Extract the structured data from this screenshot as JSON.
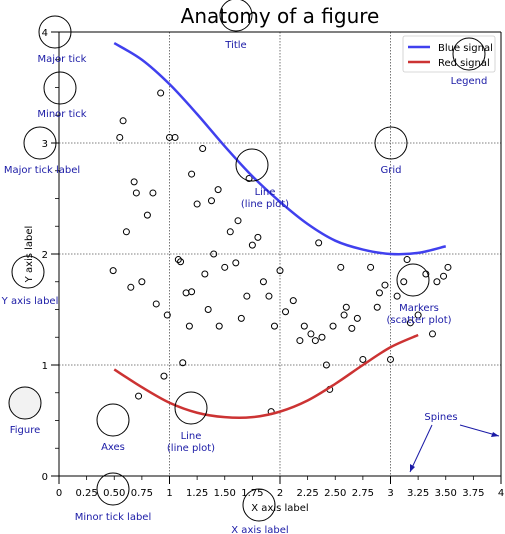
{
  "chart_data": {
    "type": "line",
    "title": "Anatomy of a figure",
    "xlabel": "X axis label",
    "ylabel": "Y axis label",
    "xlim": [
      0,
      4
    ],
    "ylim": [
      0,
      4
    ],
    "major_xticks": [
      0,
      1,
      2,
      3,
      4
    ],
    "major_xtick_labels": [
      "0",
      "1",
      "2",
      "3",
      "4"
    ],
    "minor_xticks": [
      0.25,
      0.5,
      0.75,
      1.25,
      1.5,
      1.75,
      2.25,
      2.5,
      2.75,
      3.25,
      3.5,
      3.75
    ],
    "minor_xtick_labels": [
      "0.25",
      "0.50",
      "0.75",
      "1.25",
      "1.50",
      "1.75",
      "2.25",
      "2.50",
      "2.75",
      "3.25",
      "3.50",
      "3.75"
    ],
    "major_yticks": [
      0,
      1,
      2,
      3,
      4
    ],
    "major_ytick_labels": [
      "0",
      "1",
      "2",
      "3",
      "4"
    ],
    "minor_yticks": [
      0.25,
      0.5,
      0.75,
      1.25,
      1.5,
      1.75,
      2.25,
      2.5,
      2.75,
      3.25,
      3.5,
      3.75
    ],
    "grid": true,
    "legend_position": "top-right",
    "series": [
      {
        "name": "Blue signal",
        "color": "#4040ee",
        "x": [
          0.5,
          0.75,
          1.0,
          1.25,
          1.5,
          1.75,
          2.0,
          2.25,
          2.5,
          2.75,
          3.0,
          3.25,
          3.5
        ],
        "y": [
          3.9,
          3.75,
          3.53,
          3.26,
          2.97,
          2.7,
          2.47,
          2.27,
          2.12,
          2.04,
          2.0,
          2.01,
          2.07
        ]
      },
      {
        "name": "Red signal",
        "color": "#cc3333",
        "x": [
          0.5,
          0.75,
          1.0,
          1.25,
          1.5,
          1.75,
          2.0,
          2.25,
          2.5,
          2.75,
          3.0,
          3.25
        ],
        "y": [
          0.96,
          0.8,
          0.66,
          0.57,
          0.53,
          0.53,
          0.58,
          0.68,
          0.83,
          1.0,
          1.16,
          1.27
        ]
      }
    ],
    "scatter": {
      "name": "Markers",
      "x": [
        0.49,
        0.55,
        0.58,
        0.61,
        0.65,
        0.7,
        0.75,
        0.8,
        0.85,
        0.88,
        0.92,
        0.98,
        1.0,
        1.05,
        1.08,
        1.1,
        1.15,
        1.18,
        1.2,
        1.25,
        1.3,
        1.35,
        1.38,
        1.4,
        1.45,
        1.5,
        1.55,
        1.6,
        1.65,
        1.7,
        1.75,
        1.8,
        1.85,
        1.9,
        1.95,
        2.0,
        2.05,
        2.12,
        2.18,
        2.22,
        2.28,
        2.32,
        2.38,
        2.42,
        2.48,
        2.55,
        2.6,
        2.65,
        2.7,
        2.75,
        2.82,
        2.88,
        2.95,
        3.0,
        3.06,
        3.12,
        3.18,
        3.25,
        3.32,
        3.38,
        3.42,
        3.48,
        3.52,
        1.32,
        1.62,
        1.72,
        1.44,
        2.9,
        2.35,
        0.68,
        0.95,
        1.2,
        1.12,
        2.58,
        3.15,
        0.72,
        1.92,
        2.45
      ],
      "y": [
        1.85,
        3.05,
        3.2,
        2.2,
        1.7,
        2.55,
        1.75,
        2.35,
        2.55,
        1.55,
        3.45,
        1.45,
        3.05,
        3.05,
        1.95,
        1.93,
        1.65,
        1.35,
        1.66,
        2.45,
        2.95,
        1.5,
        2.48,
        2.0,
        1.35,
        1.88,
        2.2,
        1.92,
        1.42,
        1.62,
        2.08,
        2.15,
        1.75,
        1.62,
        1.35,
        1.85,
        1.48,
        1.58,
        1.22,
        1.35,
        1.28,
        1.22,
        1.25,
        1.0,
        1.35,
        1.88,
        1.52,
        1.33,
        1.42,
        1.05,
        1.88,
        1.52,
        1.72,
        1.05,
        1.62,
        1.75,
        1.38,
        1.45,
        1.82,
        1.28,
        1.75,
        1.8,
        1.88,
        1.82,
        2.3,
        2.68,
        2.58,
        1.65,
        2.1,
        2.65,
        0.9,
        2.72,
        1.02,
        1.45,
        1.95,
        0.72,
        0.58,
        0.78
      ],
      "color": "#000000"
    }
  },
  "annotations": [
    {
      "id": "major-tick",
      "label": "Major tick"
    },
    {
      "id": "minor-tick",
      "label": "Minor tick"
    },
    {
      "id": "major-tick-label",
      "label": "Major tick label"
    },
    {
      "id": "y-axis-label",
      "label": "Y axis label"
    },
    {
      "id": "figure",
      "label": "Figure"
    },
    {
      "id": "axes",
      "label": "Axes"
    },
    {
      "id": "line-red",
      "label": "Line\n(line plot)"
    },
    {
      "id": "title",
      "label": "Title"
    },
    {
      "id": "line-blue",
      "label": "Line\n(line plot)"
    },
    {
      "id": "grid",
      "label": "Grid"
    },
    {
      "id": "legend",
      "label": "Legend"
    },
    {
      "id": "markers",
      "label": "Markers\n(scatter plot)"
    },
    {
      "id": "spines",
      "label": "Spines"
    },
    {
      "id": "minor-tick-label",
      "label": "Minor tick label"
    },
    {
      "id": "x-axis-label",
      "label": "X axis label"
    }
  ],
  "colors": {
    "annotation_text": "#1a1aa6",
    "circle_stroke": "#000000",
    "grid": "#555555"
  }
}
